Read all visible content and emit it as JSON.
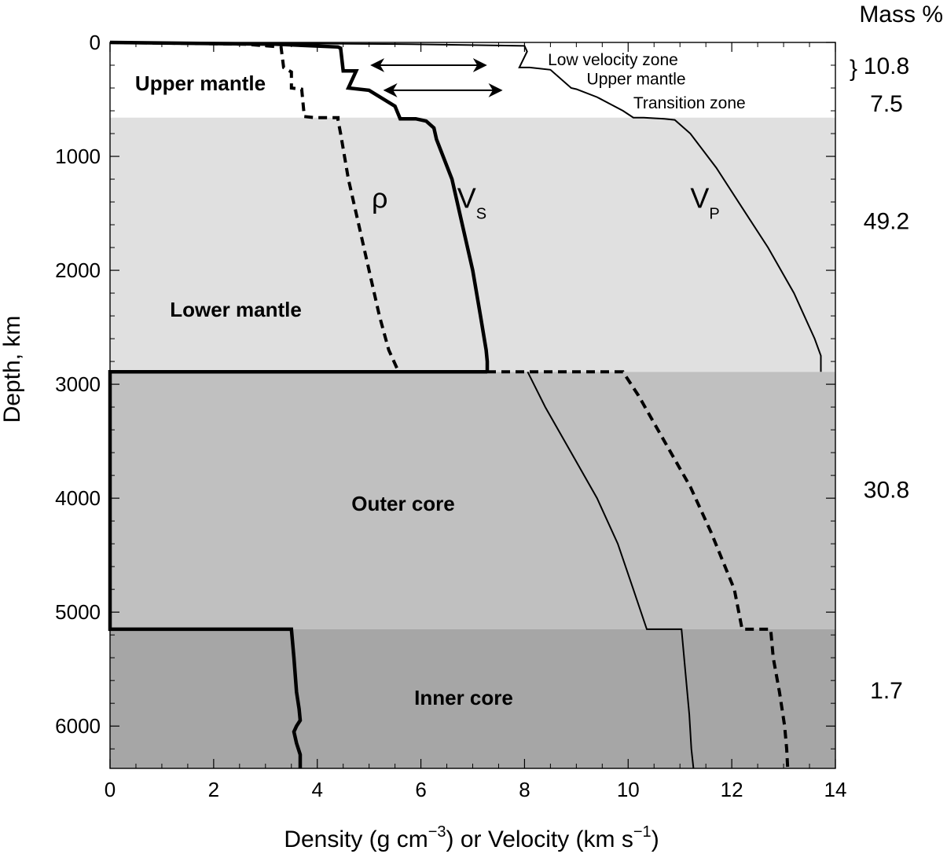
{
  "chart_data": {
    "type": "line",
    "xlabel_prefix": "Density (g cm",
    "xlabel_sup1": "−3",
    "xlabel_mid": ") or Velocity (km s",
    "xlabel_sup2": "−1",
    "xlabel_suffix": ")",
    "ylabel": "Depth, km",
    "xlim": [
      0,
      14
    ],
    "ylim": [
      6371,
      0
    ],
    "x_ticks": [
      "0",
      "2",
      "4",
      "6",
      "8",
      "10",
      "12",
      "14"
    ],
    "y_ticks": [
      "0",
      "1000",
      "2000",
      "3000",
      "4000",
      "5000",
      "6000"
    ],
    "mass_header": "Mass %",
    "regions": [
      {
        "name": "Upper mantle",
        "top": 0,
        "bottom": 660,
        "color": "#ffffff"
      },
      {
        "name": "Lower mantle",
        "top": 660,
        "bottom": 2891,
        "color": "#e0e0e0"
      },
      {
        "name": "Outer core",
        "top": 2891,
        "bottom": 5150,
        "color": "#c0c0c0"
      },
      {
        "name": "Inner core",
        "top": 5150,
        "bottom": 6371,
        "color": "#a6a6a6"
      }
    ],
    "mass_percent": [
      {
        "value": "10.8",
        "depth": 200,
        "brace": "}"
      },
      {
        "value": "7.5",
        "depth": 530
      },
      {
        "value": "49.2",
        "depth": 1560
      },
      {
        "value": "30.8",
        "depth": 3920
      },
      {
        "value": "1.7",
        "depth": 5680
      }
    ],
    "zone_annotations": [
      {
        "text": "Low velocity zone",
        "depth": 150,
        "x": 8.45
      },
      {
        "text": "Upper mantle",
        "depth": 320,
        "x": 9.2
      },
      {
        "text": "Transition zone",
        "depth": 530,
        "x": 10.1
      }
    ],
    "series": [
      {
        "name": "Vp",
        "label_main": "V",
        "label_sub": "P",
        "label_x": 11.2,
        "label_depth": 1450,
        "style": "thin",
        "x": [
          0,
          5.8,
          8.0,
          8.05,
          7.9,
          8.1,
          8.5,
          8.9,
          9.0,
          9.4,
          9.9,
          10.1,
          10.3,
          10.7,
          10.9,
          11.2,
          11.7,
          12.2,
          12.7,
          13.2,
          13.6,
          13.72,
          13.72
        ],
        "y": [
          0,
          15,
          30,
          80,
          220,
          220,
          240,
          400,
          410,
          480,
          600,
          660,
          660,
          670,
          680,
          800,
          1100,
          1450,
          1800,
          2200,
          2600,
          2750,
          2891
        ]
      },
      {
        "name": "Vs",
        "label_main": "V",
        "label_sub": "S",
        "label_x": 6.7,
        "label_depth": 1450,
        "style": "thick",
        "x": [
          0,
          3.2,
          4.4,
          4.45,
          4.5,
          4.75,
          4.6,
          5.0,
          5.5,
          5.6,
          5.9,
          6.1,
          6.25,
          6.3,
          6.6,
          6.8,
          7.0,
          7.15,
          7.26,
          7.28,
          7.28
        ],
        "y": [
          0,
          15,
          40,
          50,
          250,
          250,
          400,
          420,
          560,
          670,
          670,
          690,
          750,
          850,
          1200,
          1600,
          2000,
          2400,
          2700,
          2800,
          2891
        ]
      },
      {
        "name": "rho",
        "label_main": "ρ",
        "style": "dashed",
        "label_x": 5.05,
        "label_depth": 1450,
        "x": [
          0,
          2.6,
          3.3,
          3.35,
          3.5,
          3.5,
          3.7,
          3.75,
          3.95,
          4.4,
          4.4,
          4.45,
          4.6,
          4.8,
          5.0,
          5.2,
          5.38,
          5.57
        ],
        "y": [
          0,
          15,
          40,
          220,
          260,
          400,
          410,
          650,
          660,
          660,
          680,
          800,
          1200,
          1600,
          2000,
          2400,
          2700,
          2891
        ]
      },
      {
        "name": "Vs core",
        "style": "thick",
        "x": [
          7.28,
          0,
          0,
          3.5,
          3.55,
          3.6,
          3.65,
          3.67,
          3.6,
          3.55,
          3.6,
          3.67,
          3.67
        ],
        "y": [
          2891,
          2891,
          5150,
          5150,
          5400,
          5700,
          5850,
          5950,
          6000,
          6050,
          6150,
          6250,
          6371
        ]
      },
      {
        "name": "Vp core",
        "style": "thin",
        "x": [
          8.06,
          8.4,
          8.9,
          9.4,
          9.8,
          10.1,
          10.36,
          11.03,
          11.1,
          11.18,
          11.22,
          11.26
        ],
        "y": [
          2891,
          3200,
          3600,
          4000,
          4400,
          4800,
          5150,
          5150,
          5500,
          5900,
          6200,
          6371
        ]
      },
      {
        "name": "rho core",
        "style": "dashed",
        "x": [
          7.28,
          8.0,
          9.9,
          10.2,
          10.7,
          11.2,
          11.6,
          12.05,
          12.2,
          12.75,
          12.8,
          12.92,
          13.02,
          13.06,
          13.08
        ],
        "y": [
          2891,
          2891,
          2891,
          3100,
          3500,
          3900,
          4300,
          4800,
          5150,
          5150,
          5400,
          5700,
          6000,
          6200,
          6371
        ]
      }
    ],
    "arrows": [
      {
        "x1": 5.05,
        "x2": 7.25,
        "depth": 200
      },
      {
        "x1": 5.3,
        "x2": 7.55,
        "depth": 420
      }
    ]
  }
}
